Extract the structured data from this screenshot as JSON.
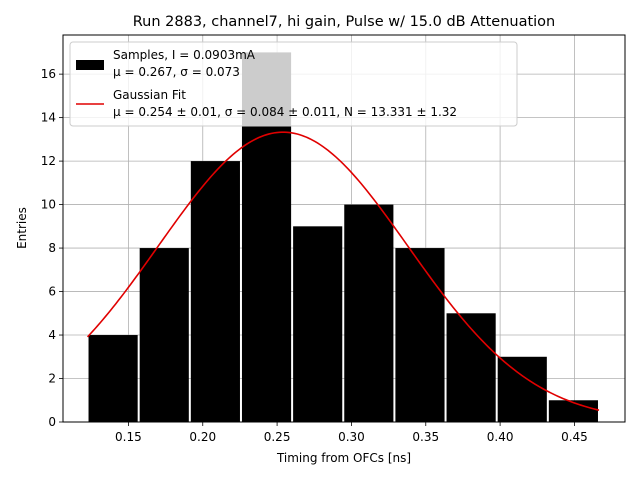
{
  "chart_data": {
    "type": "bar",
    "title": "Run 2883, channel7, hi gain, Pulse w/ 15.0 dB Attenuation",
    "xlabel": "Timing from OFCs [ns]",
    "ylabel": "Entries",
    "xlim": [
      0.106,
      0.484
    ],
    "ylim": [
      0,
      17.8
    ],
    "grid": true,
    "legend_position": "top-left",
    "bin_edges": [
      0.1225,
      0.1569,
      0.1913,
      0.2257,
      0.2601,
      0.2945,
      0.3289,
      0.3633,
      0.3977,
      0.4321,
      0.4665
    ],
    "counts": [
      4,
      8,
      12,
      17,
      9,
      10,
      8,
      5,
      3,
      1
    ],
    "bar_color": "#000000",
    "fit_color": "#e00000",
    "fit": {
      "mu": 0.254,
      "sigma": 0.084,
      "N": 13.331
    },
    "xticks": [
      {
        "value": 0.15,
        "label": "0.15"
      },
      {
        "value": 0.2,
        "label": "0.20"
      },
      {
        "value": 0.25,
        "label": "0.25"
      },
      {
        "value": 0.3,
        "label": "0.30"
      },
      {
        "value": 0.35,
        "label": "0.35"
      },
      {
        "value": 0.4,
        "label": "0.40"
      },
      {
        "value": 0.45,
        "label": "0.45"
      }
    ],
    "yticks": [
      {
        "value": 0,
        "label": "0"
      },
      {
        "value": 2,
        "label": "2"
      },
      {
        "value": 4,
        "label": "4"
      },
      {
        "value": 6,
        "label": "6"
      },
      {
        "value": 8,
        "label": "8"
      },
      {
        "value": 10,
        "label": "10"
      },
      {
        "value": 12,
        "label": "12"
      },
      {
        "value": 14,
        "label": "14"
      },
      {
        "value": 16,
        "label": "16"
      }
    ],
    "legend": {
      "samples_line1": "Samples, I = 0.0903mA",
      "samples_line2": "μ = 0.267, σ = 0.073",
      "fit_line1": "Gaussian Fit",
      "fit_line2": "μ = 0.254 ± 0.01, σ = 0.084 ± 0.011, N = 13.331 ± 1.32"
    }
  }
}
